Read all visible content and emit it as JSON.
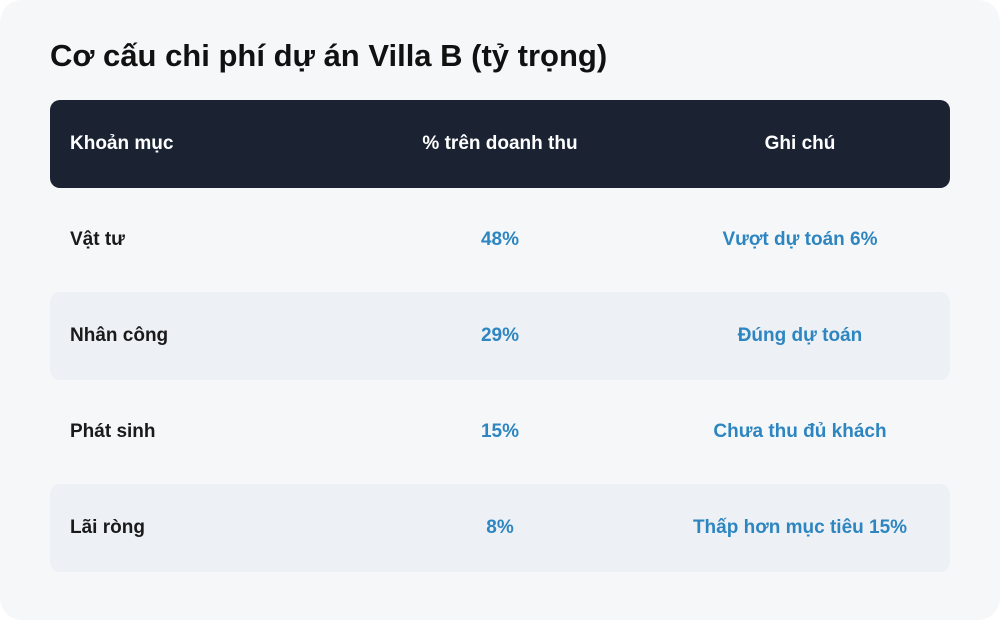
{
  "title": "Cơ cấu chi phí dự án Villa B (tỷ trọng)",
  "colors": {
    "header_bg": "#1b2333",
    "accent": "#2e86c1",
    "alt_row_bg": "#edf0f5",
    "card_bg": "#f6f7f9"
  },
  "chart_data": {
    "type": "table",
    "title": "Cơ cấu chi phí dự án Villa B (tỷ trọng)",
    "columns": [
      "Khoản mục",
      "% trên doanh thu",
      "Ghi chú"
    ],
    "rows": [
      [
        "Vật tư",
        "48%",
        "Vượt dự toán 6%"
      ],
      [
        "Nhân công",
        "29%",
        "Đúng dự toán"
      ],
      [
        "Phát sinh",
        "15%",
        "Chưa thu đủ khách"
      ],
      [
        "Lãi ròng",
        "8%",
        "Thấp hơn mục tiêu 15%"
      ]
    ]
  }
}
